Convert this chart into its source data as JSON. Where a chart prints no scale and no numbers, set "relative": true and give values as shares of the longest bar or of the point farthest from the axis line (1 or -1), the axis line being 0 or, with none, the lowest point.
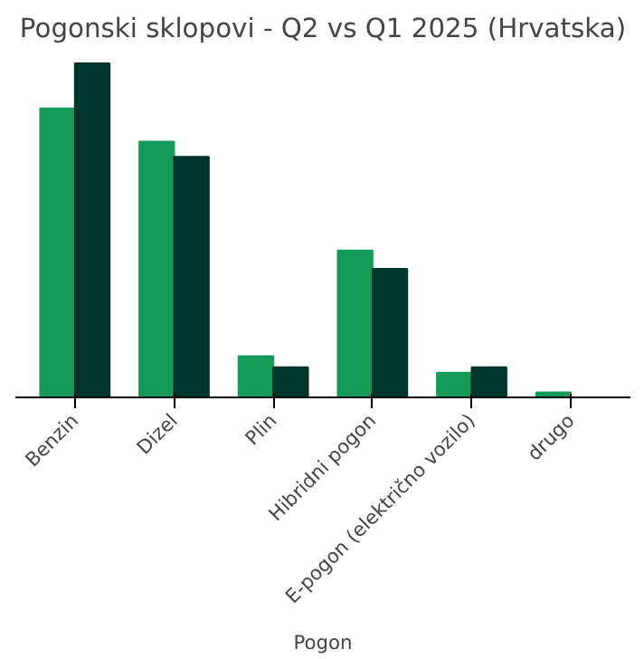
{
  "chart_data": {
    "type": "bar",
    "title": "Pogonski sklopovi - Q2 vs Q1 2025 (Hrvatska)",
    "xlabel": "Pogon",
    "relative": true,
    "categories": [
      "Benzin",
      "Dizel",
      "Plin",
      "Hibridni pogon",
      "E-pogon (električno vozilo)",
      "drugo"
    ],
    "series": [
      {
        "color": "#159a5a",
        "values": [
          0.865,
          0.766,
          0.123,
          0.44,
          0.074,
          0.015
        ]
      },
      {
        "color": "#00352e",
        "values": [
          1,
          0.72,
          0.09,
          0.385,
          0.09,
          null
        ]
      }
    ],
    "grid": false
  }
}
